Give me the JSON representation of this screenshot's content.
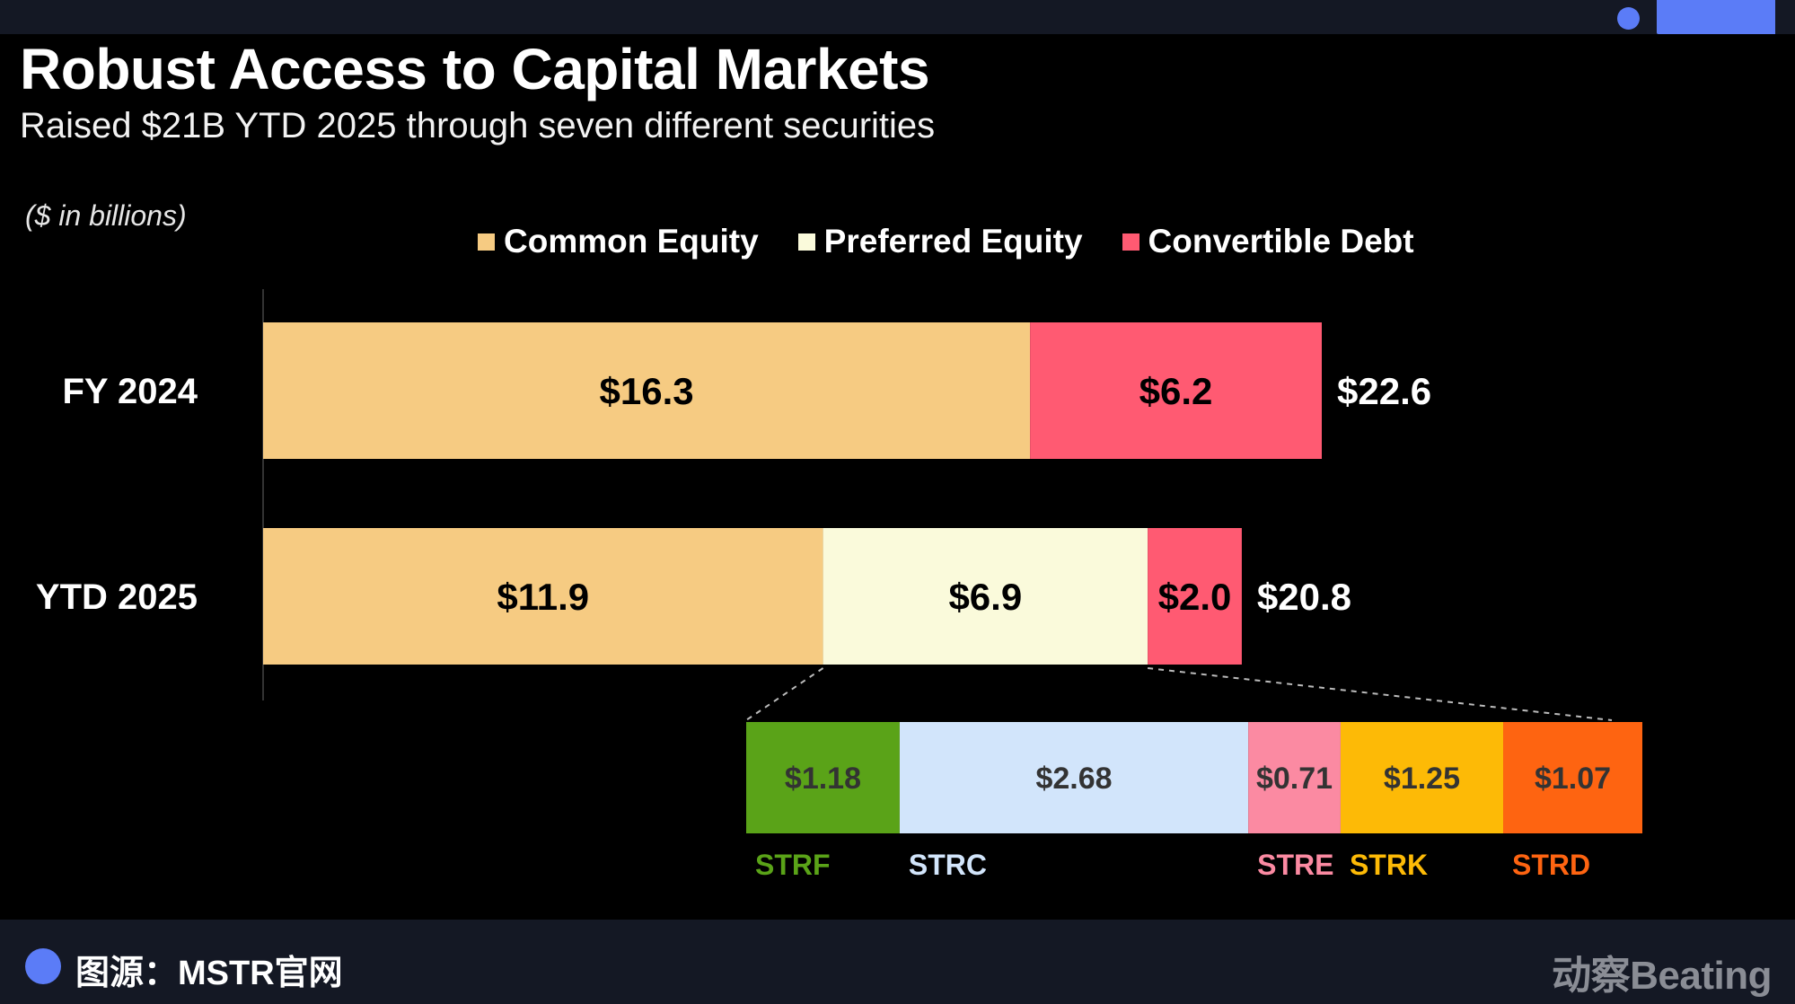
{
  "page": {
    "title": "Robust Access to Capital Markets",
    "subtitle": "Raised $21B YTD 2025 through seven different securities",
    "unit_note": "($ in billions)"
  },
  "colors": {
    "common_equity": "#f6cb82",
    "preferred_equity": "#fafadb",
    "convertible_debt": "#ff5a72",
    "strf": "#5aa318",
    "strc": "#d2e5fb",
    "stre": "#fb8aa2",
    "strk": "#fdba06",
    "strd": "#fe6411",
    "axis": "#333333",
    "connector": "#bbbbbb"
  },
  "legend": [
    {
      "label": "Common Equity",
      "color_key": "common_equity"
    },
    {
      "label": "Preferred Equity",
      "color_key": "preferred_equity"
    },
    {
      "label": "Convertible Debt",
      "color_key": "convertible_debt"
    }
  ],
  "chart_data": {
    "type": "bar",
    "orientation": "horizontal",
    "stacked": true,
    "unit": "$ in billions",
    "categories": [
      "FY 2024",
      "YTD 2025"
    ],
    "series": [
      {
        "name": "Common Equity",
        "color_key": "common_equity",
        "values": [
          16.3,
          11.9
        ],
        "labels": [
          "$16.3",
          "$11.9"
        ]
      },
      {
        "name": "Preferred Equity",
        "color_key": "preferred_equity",
        "values": [
          0,
          6.9
        ],
        "labels": [
          "",
          "$6.9"
        ]
      },
      {
        "name": "Convertible Debt",
        "color_key": "convertible_debt",
        "values": [
          6.2,
          2.0
        ],
        "labels": [
          "$6.2",
          "$2.0"
        ]
      }
    ],
    "totals": [
      22.6,
      20.8
    ],
    "total_labels": [
      "$22.6",
      "$20.8"
    ],
    "breakdown": {
      "parent_category": "YTD 2025",
      "parent_series": "Preferred Equity",
      "items": [
        {
          "name": "STRF",
          "value": 1.18,
          "label": "$1.18",
          "color_key": "strf"
        },
        {
          "name": "STRC",
          "value": 2.68,
          "label": "$2.68",
          "color_key": "strc"
        },
        {
          "name": "STRE",
          "value": 0.71,
          "label": "$0.71",
          "color_key": "stre"
        },
        {
          "name": "STRK",
          "value": 1.25,
          "label": "$1.25",
          "color_key": "strk"
        },
        {
          "name": "STRD",
          "value": 1.07,
          "label": "$1.07",
          "color_key": "strd"
        }
      ]
    },
    "legend_position": "top",
    "grid": false
  },
  "footer": {
    "source": "图源：MSTR官网",
    "brand": "动察Beating"
  }
}
